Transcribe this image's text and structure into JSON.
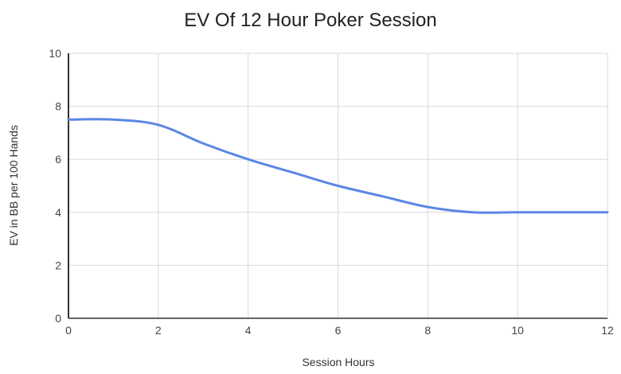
{
  "chart_data": {
    "type": "line",
    "title": "EV Of 12 Hour Poker Session",
    "xlabel": "Session Hours",
    "ylabel": "EV in BB per 100 Hands",
    "x": [
      0,
      1,
      2,
      3,
      4,
      5,
      6,
      7,
      8,
      9,
      10,
      11,
      12
    ],
    "series": [
      {
        "name": "EV",
        "values": [
          7.5,
          7.5,
          7.3,
          6.6,
          6.0,
          5.5,
          5.0,
          4.6,
          4.2,
          4.0,
          4.0,
          4.0,
          4.0
        ],
        "color": "#5b87e5",
        "smooth": true
      }
    ],
    "xlim": [
      0,
      12
    ],
    "ylim": [
      0,
      10
    ],
    "xticks": [
      "0",
      "2",
      "4",
      "6",
      "8",
      "10",
      "12"
    ],
    "yticks": [
      "0",
      "2",
      "4",
      "6",
      "8",
      "10"
    ],
    "grid": true,
    "legend": "none"
  }
}
